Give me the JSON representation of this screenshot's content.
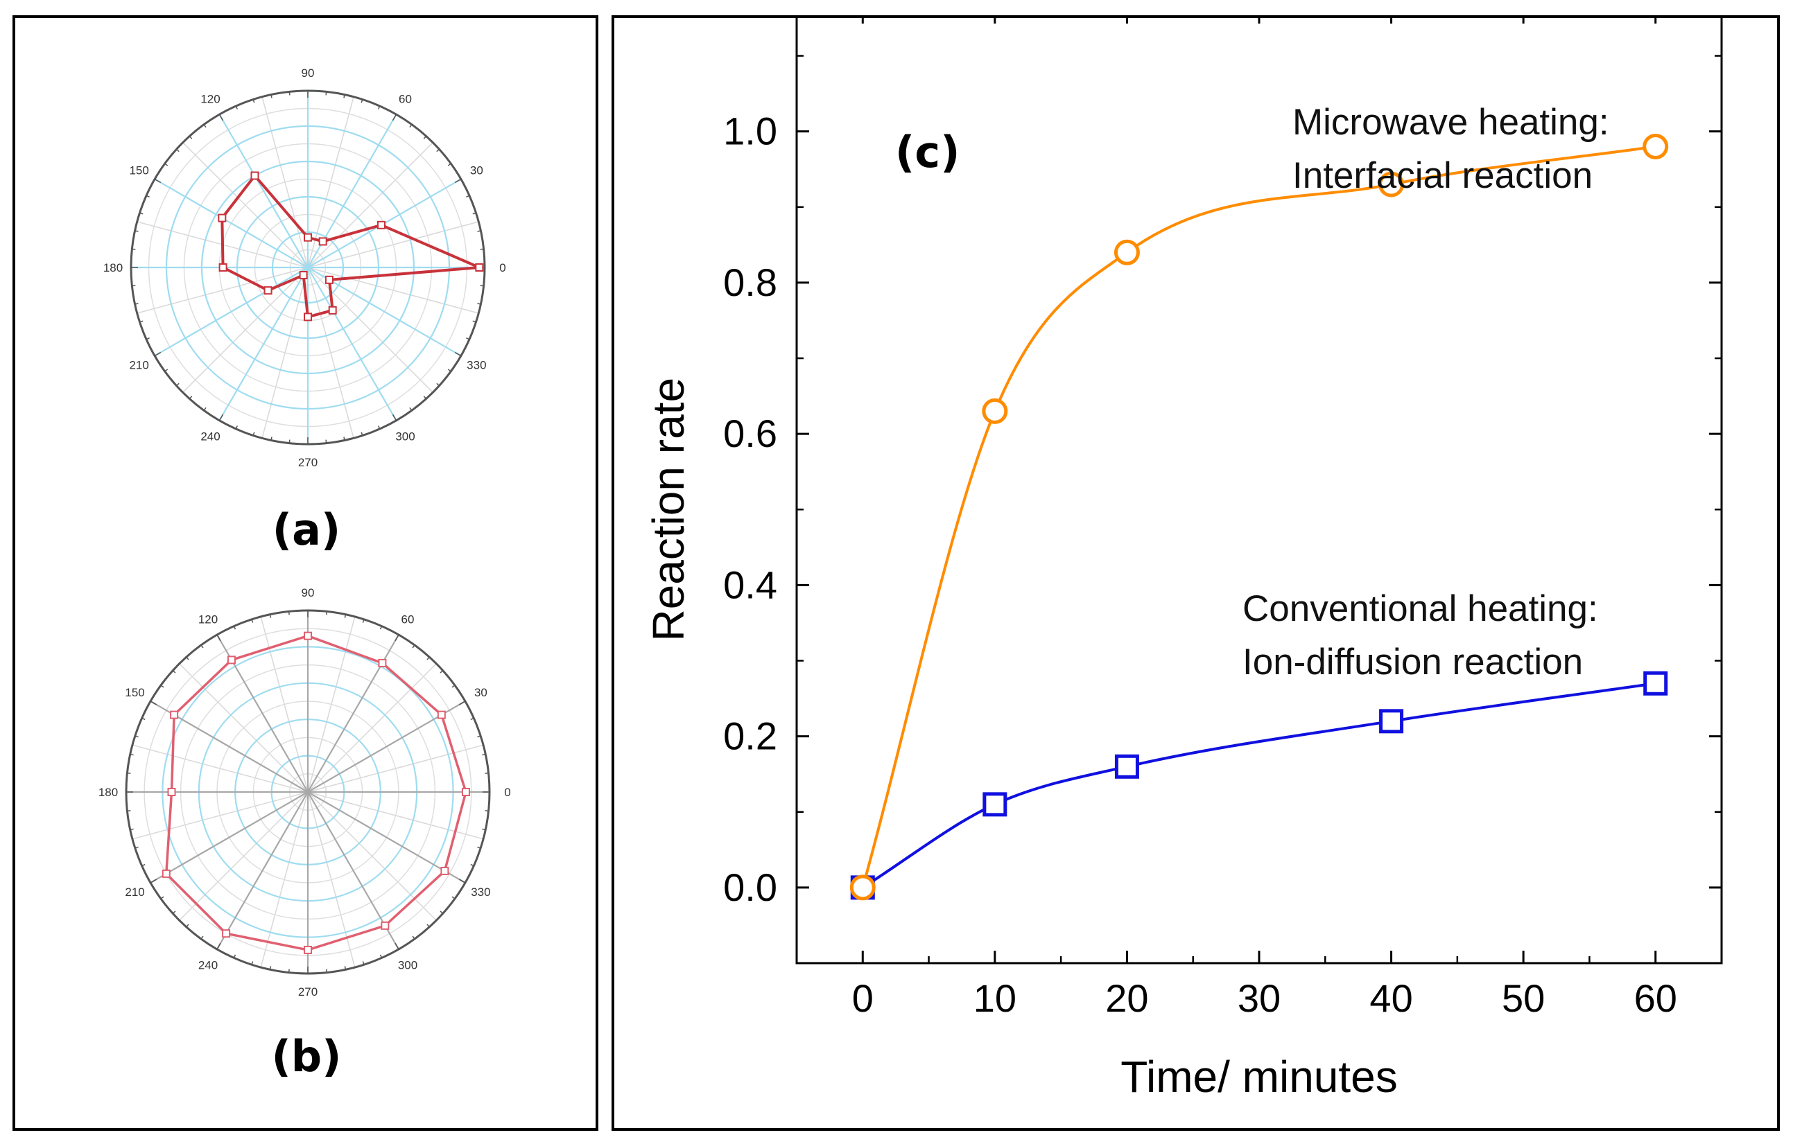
{
  "chart_data": [
    {
      "type": "polar",
      "label": "(a)",
      "angles": [
        0,
        30,
        60,
        90,
        120,
        150,
        180,
        210,
        240,
        270,
        300,
        330
      ],
      "angular_tick_labels": [
        "0",
        "30",
        "60",
        "90",
        "120",
        "150",
        "180",
        "210",
        "240",
        "270",
        "300",
        "330"
      ],
      "rlim": [
        0,
        1
      ],
      "values": [
        0.97,
        0.48,
        0.17,
        0.17,
        0.6,
        0.56,
        0.48,
        0.26,
        0.05,
        0.28,
        0.28,
        0.14
      ],
      "color": "#c8323a"
    },
    {
      "type": "polar",
      "label": "(b)",
      "angles": [
        0,
        30,
        60,
        90,
        120,
        150,
        180,
        210,
        240,
        270,
        300,
        330
      ],
      "angular_tick_labels": [
        "0",
        "30",
        "60",
        "90",
        "120",
        "150",
        "180",
        "210",
        "240",
        "270",
        "300",
        "330"
      ],
      "rlim": [
        0,
        1
      ],
      "values": [
        0.87,
        0.85,
        0.82,
        0.86,
        0.84,
        0.85,
        0.75,
        0.9,
        0.9,
        0.87,
        0.85,
        0.87
      ],
      "color": "#e06070"
    },
    {
      "type": "line",
      "label": "(c)",
      "xlabel": "Time/ minutes",
      "ylabel": "Reaction rate",
      "xlim": [
        -5,
        65
      ],
      "ylim": [
        -0.1,
        1.15
      ],
      "xticks": [
        "0",
        "10",
        "20",
        "30",
        "40",
        "50",
        "60"
      ],
      "yticks": [
        "0.0",
        "0.2",
        "0.4",
        "0.6",
        "0.8",
        "1.0"
      ],
      "series": [
        {
          "x": [
            0,
            10,
            20,
            40,
            60
          ],
          "values": [
            0.0,
            0.63,
            0.84,
            0.93,
            0.98
          ],
          "color": "#ff8c00",
          "marker": "circle"
        },
        {
          "x": [
            0,
            10,
            20,
            40,
            60
          ],
          "values": [
            0.0,
            0.11,
            0.16,
            0.22,
            0.27
          ],
          "color": "#1010e0",
          "marker": "square"
        }
      ],
      "annotations": [
        {
          "lines": [
            "Microwave heating:",
            "Interfacial reaction"
          ]
        },
        {
          "lines": [
            "Conventional heating:",
            "Ion-diffusion reaction"
          ]
        }
      ]
    }
  ]
}
